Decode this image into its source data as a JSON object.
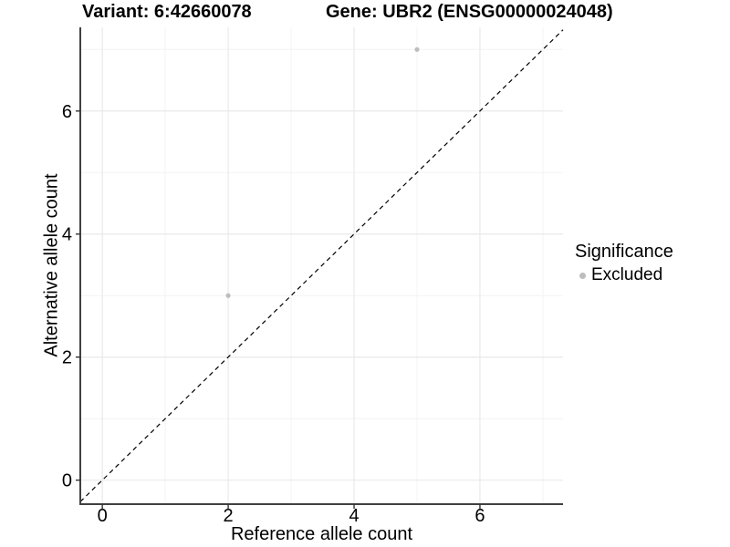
{
  "chart_data": {
    "type": "scatter",
    "title_variant": "Variant: 6:42660078",
    "title_gene": "Gene: UBR2 (ENSG00000024048)",
    "xlabel": "Reference allele count",
    "ylabel": "Alternative allele count",
    "xlim": [
      -0.35,
      7.32
    ],
    "ylim": [
      -0.39,
      7.36
    ],
    "x_ticks": [
      0,
      2,
      4,
      6
    ],
    "y_ticks": [
      0,
      2,
      4,
      6
    ],
    "x_minor_ticks": [
      1,
      3,
      5,
      7
    ],
    "y_minor_ticks": [
      1,
      3,
      5,
      7
    ],
    "grid": true,
    "identity_line": {
      "slope": 1,
      "intercept": 0,
      "style": "dashed"
    },
    "series": [
      {
        "name": "Excluded",
        "color": "#bdbdbd",
        "points": [
          {
            "x": 2,
            "y": 3
          },
          {
            "x": 5,
            "y": 7
          }
        ]
      }
    ],
    "legend": {
      "title": "Significance",
      "position": "right",
      "entries": [
        {
          "label": "Excluded",
          "color": "#bdbdbd"
        }
      ]
    },
    "colors": {
      "grid_major": "#e9e9e9",
      "grid_minor": "#f4f4f4",
      "axis_line": "#404040",
      "tick_mark": "#333333",
      "diagonal": "#000000",
      "point": "#bdbdbd",
      "background": "#ffffff"
    }
  }
}
